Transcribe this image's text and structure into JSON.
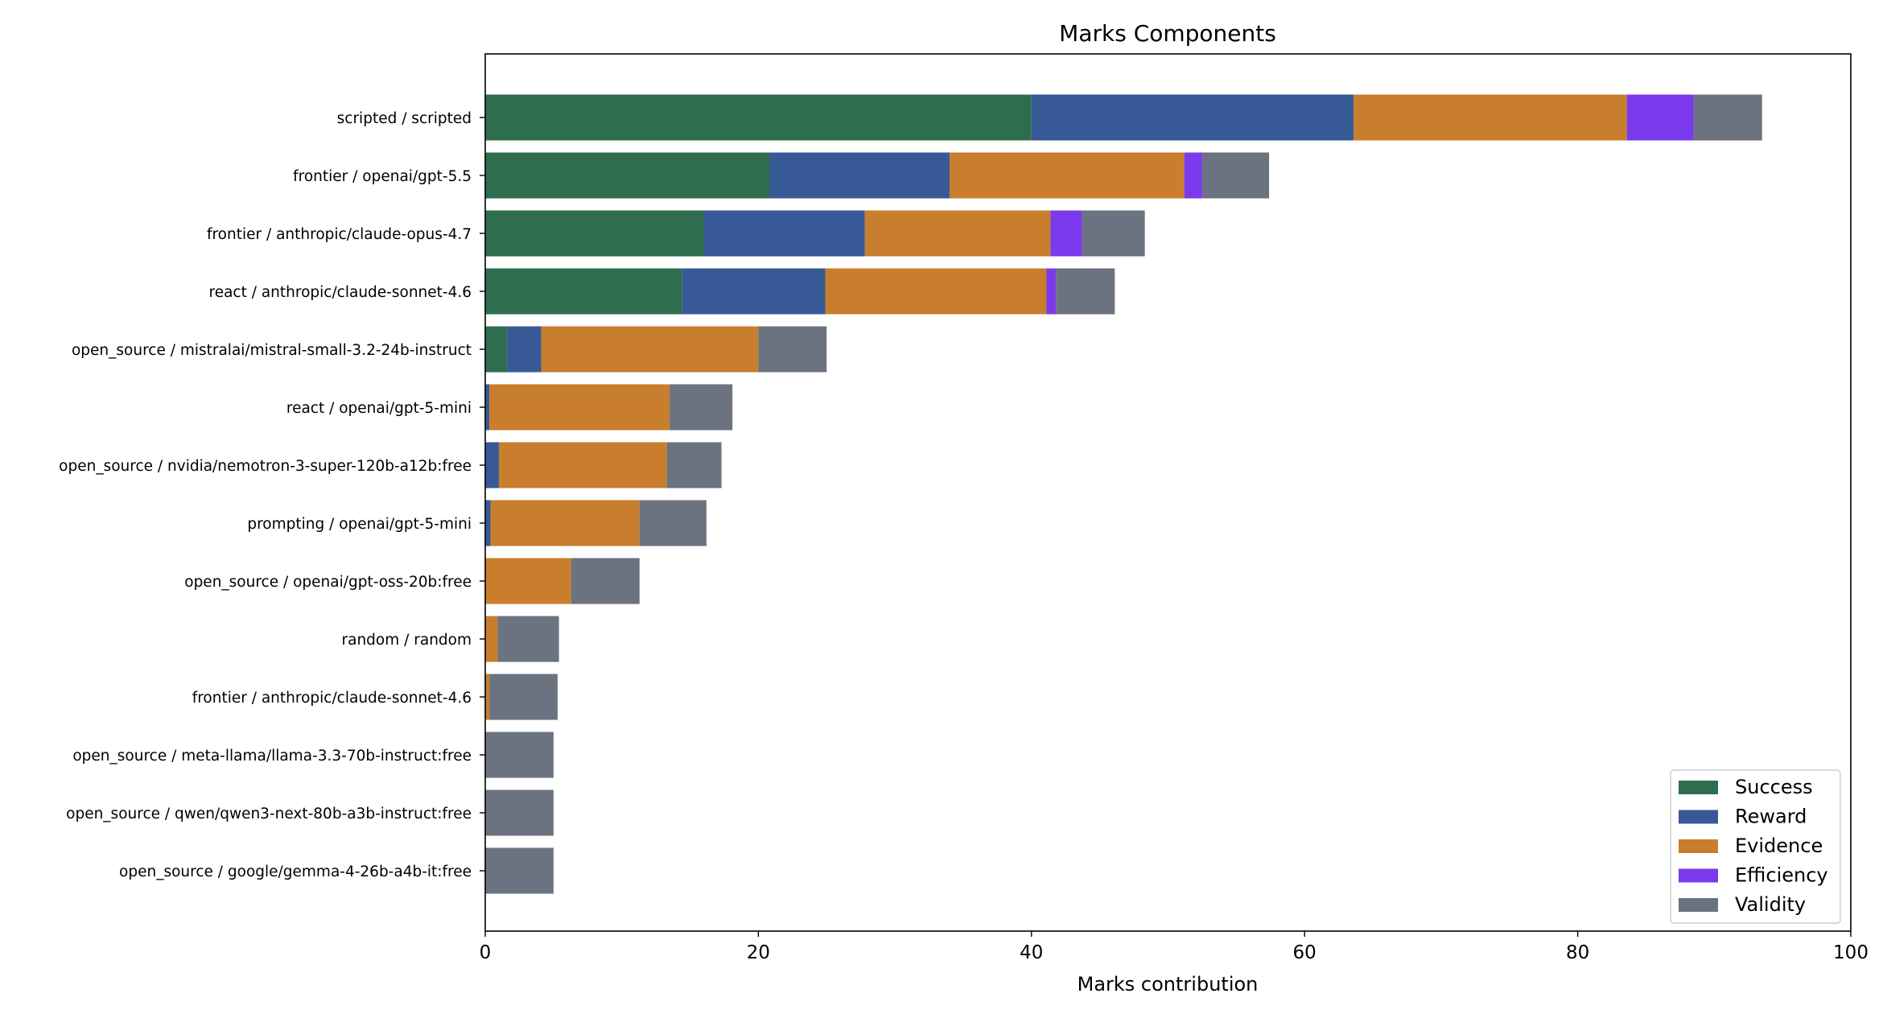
{
  "chart_data": {
    "type": "bar",
    "orientation": "horizontal",
    "stacked": true,
    "title": "Marks Components",
    "xlabel": "Marks contribution",
    "ylabel": "",
    "xlim": [
      0,
      100
    ],
    "xticks": [
      0,
      20,
      40,
      60,
      80,
      100
    ],
    "grid": false,
    "legend_position": "bottom-right",
    "categories": [
      "scripted / scripted",
      "frontier / openai/gpt-5.5",
      "frontier / anthropic/claude-opus-4.7",
      "react / anthropic/claude-sonnet-4.6",
      "open_source / mistralai/mistral-small-3.2-24b-instruct",
      "react / openai/gpt-5-mini",
      "open_source / nvidia/nemotron-3-super-120b-a12b:free",
      "prompting / openai/gpt-5-mini",
      "open_source / openai/gpt-oss-20b:free",
      "random / random",
      "frontier / anthropic/claude-sonnet-4.6",
      "open_source / meta-llama/llama-3.3-70b-instruct:free",
      "open_source / qwen/qwen3-next-80b-a3b-instruct:free",
      "open_source / google/gemma-4-26b-a4b-it:free"
    ],
    "series": [
      {
        "name": "Success",
        "color": "#2e6e4e",
        "values": [
          40,
          20.8,
          16,
          14.4,
          1.6,
          0,
          0,
          0,
          0,
          0,
          0,
          0,
          0,
          0
        ]
      },
      {
        "name": "Reward",
        "color": "#375a96",
        "values": [
          23.6,
          13.2,
          11.8,
          10.5,
          2.5,
          0.3,
          1,
          0.4,
          0,
          0,
          0,
          0,
          0,
          0
        ]
      },
      {
        "name": "Evidence",
        "color": "#c87e2c",
        "values": [
          20,
          17.2,
          13.6,
          16.2,
          15.9,
          13.2,
          12.3,
          10.9,
          6.3,
          0.9,
          0.3,
          0,
          0,
          0
        ]
      },
      {
        "name": "Efficiency",
        "color": "#7c3aed",
        "values": [
          4.9,
          1.3,
          2.3,
          0.7,
          0,
          0,
          0,
          0,
          0,
          0,
          0,
          0,
          0,
          0
        ]
      },
      {
        "name": "Validity",
        "color": "#6b7280",
        "values": [
          5,
          4.9,
          4.6,
          4.3,
          5,
          4.6,
          4,
          4.9,
          5,
          4.5,
          5,
          5,
          5,
          5
        ]
      }
    ]
  }
}
